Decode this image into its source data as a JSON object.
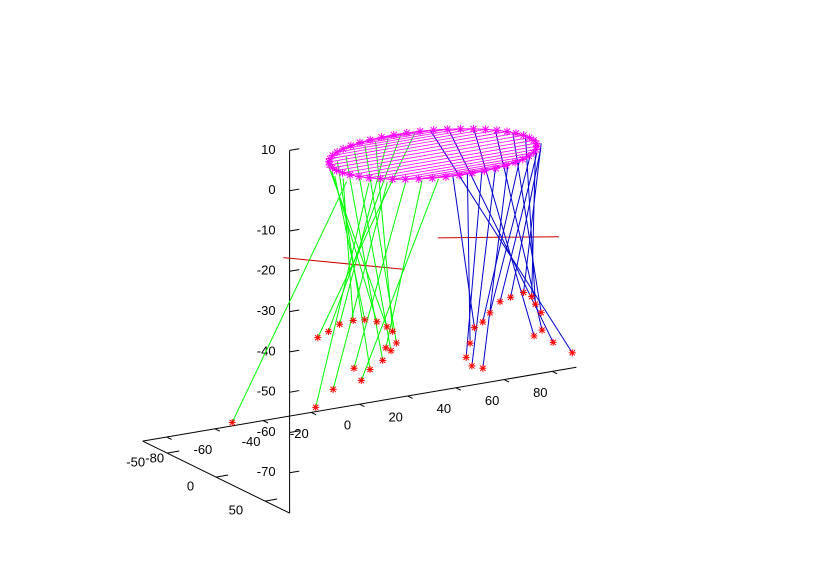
{
  "chart_data": {
    "type": "scatter",
    "projection": "3d",
    "title": "",
    "xlabel": "",
    "ylabel": "",
    "zlabel": "",
    "xlim": [
      -90,
      90
    ],
    "ylim": [
      -75,
      75
    ],
    "zlim": [
      -80,
      10
    ],
    "x_ticks": [
      "-80",
      "-60",
      "-40",
      "-20",
      "0",
      "20",
      "40",
      "60",
      "80"
    ],
    "y_ticks": [
      "-50",
      "0",
      "50"
    ],
    "z_ticks": [
      "-70",
      "-60",
      "-50",
      "-40",
      "-30",
      "-20",
      "-10",
      "0",
      "10"
    ],
    "grid": false,
    "legend": "none",
    "top_ring": {
      "z": -9,
      "radius": 40,
      "point_count": 48,
      "color": "#ff00ff",
      "marker": "*"
    },
    "support_points": {
      "color": "#ff0000",
      "marker": "*",
      "points": [
        [
          -76,
          -18,
          -70
        ],
        [
          -56,
          18,
          -64
        ],
        [
          -52,
          26,
          -59
        ],
        [
          -45,
          30,
          -54
        ],
        [
          -35,
          38,
          -49
        ],
        [
          -20,
          -24,
          -66
        ],
        [
          -18,
          -20,
          -63
        ],
        [
          -16,
          -12,
          -60
        ],
        [
          -15,
          -6,
          -57
        ],
        [
          -16,
          2,
          -54
        ],
        [
          -20,
          8,
          -50
        ],
        [
          -24,
          12,
          -48
        ],
        [
          -29,
          14,
          -46
        ],
        [
          -34,
          14,
          -45
        ],
        [
          -38,
          12,
          -45
        ],
        [
          -42,
          8,
          -46
        ],
        [
          -45,
          4,
          -48
        ],
        [
          -47,
          -2,
          -50
        ],
        [
          5,
          30,
          -49
        ],
        [
          4,
          28,
          -53
        ],
        [
          4,
          24,
          -57
        ],
        [
          8,
          20,
          -60
        ],
        [
          15,
          14,
          -62
        ],
        [
          6,
          36,
          -47
        ],
        [
          9,
          36,
          -45
        ],
        [
          14,
          34,
          -43
        ],
        [
          20,
          30,
          -43
        ],
        [
          27,
          26,
          -43
        ],
        [
          32,
          22,
          -45
        ],
        [
          36,
          16,
          -48
        ],
        [
          40,
          12,
          -51
        ],
        [
          42,
          8,
          -56
        ],
        [
          46,
          -10,
          -60
        ],
        [
          58,
          -20,
          -64
        ],
        [
          70,
          -30,
          -69
        ]
      ]
    },
    "cables": [
      {
        "color": "#00ff00",
        "from": [
          -76,
          -18,
          -70
        ],
        "to": [
          -44,
          20,
          -9
        ]
      },
      {
        "color": "#00ff00",
        "from": [
          -56,
          18,
          -64
        ],
        "to": [
          -38,
          28,
          -9
        ]
      },
      {
        "color": "#00ff00",
        "from": [
          -52,
          26,
          -59
        ],
        "to": [
          -32,
          32,
          -9
        ]
      },
      {
        "color": "#00ff00",
        "from": [
          -45,
          30,
          -54
        ],
        "to": [
          -26,
          36,
          -9
        ]
      },
      {
        "color": "#00ff00",
        "from": [
          -35,
          38,
          -49
        ],
        "to": [
          -20,
          38,
          -9
        ]
      },
      {
        "color": "#00ff00",
        "from": [
          -20,
          -24,
          -66
        ],
        "to": [
          -14,
          40,
          -9
        ]
      },
      {
        "color": "#00ff00",
        "from": [
          -18,
          -20,
          -63
        ],
        "to": [
          -34,
          -14,
          -9
        ]
      },
      {
        "color": "#00ff00",
        "from": [
          -16,
          -12,
          -60
        ],
        "to": [
          -28,
          -20,
          -9
        ]
      },
      {
        "color": "#00ff00",
        "from": [
          -15,
          -6,
          -57
        ],
        "to": [
          -22,
          -26,
          -9
        ]
      },
      {
        "color": "#00ff00",
        "from": [
          -16,
          2,
          -54
        ],
        "to": [
          -16,
          -30,
          -9
        ]
      },
      {
        "color": "#00ff00",
        "from": [
          -20,
          8,
          -50
        ],
        "to": [
          -10,
          -34,
          -9
        ]
      },
      {
        "color": "#00ff00",
        "from": [
          -24,
          12,
          -48
        ],
        "to": [
          -40,
          -8,
          -9
        ]
      },
      {
        "color": "#00ff00",
        "from": [
          -29,
          14,
          -46
        ],
        "to": [
          -42,
          0,
          -9
        ]
      },
      {
        "color": "#00ff00",
        "from": [
          -34,
          14,
          -45
        ],
        "to": [
          -44,
          8,
          -9
        ]
      },
      {
        "color": "#00ff00",
        "from": [
          -38,
          12,
          -45
        ],
        "to": [
          -43,
          14,
          -9
        ]
      },
      {
        "color": "#00ff00",
        "from": [
          -42,
          8,
          -46
        ],
        "to": [
          -4,
          -36,
          -9
        ]
      },
      {
        "color": "#00ff00",
        "from": [
          -45,
          4,
          -48
        ],
        "to": [
          2,
          -38,
          -9
        ]
      },
      {
        "color": "#00ff00",
        "from": [
          -47,
          -2,
          -50
        ],
        "to": [
          8,
          -38,
          -9
        ]
      },
      {
        "color": "#0000cc",
        "from": [
          5,
          30,
          -49
        ],
        "to": [
          -8,
          40,
          -9
        ]
      },
      {
        "color": "#0000cc",
        "from": [
          4,
          28,
          -53
        ],
        "to": [
          -2,
          40,
          -9
        ]
      },
      {
        "color": "#0000cc",
        "from": [
          4,
          24,
          -57
        ],
        "to": [
          4,
          40,
          -9
        ]
      },
      {
        "color": "#0000cc",
        "from": [
          8,
          20,
          -60
        ],
        "to": [
          10,
          39,
          -9
        ]
      },
      {
        "color": "#0000cc",
        "from": [
          15,
          14,
          -62
        ],
        "to": [
          16,
          37,
          -9
        ]
      },
      {
        "color": "#0000cc",
        "from": [
          6,
          36,
          -47
        ],
        "to": [
          22,
          34,
          -9
        ]
      },
      {
        "color": "#0000cc",
        "from": [
          9,
          36,
          -45
        ],
        "to": [
          28,
          30,
          -9
        ]
      },
      {
        "color": "#0000cc",
        "from": [
          14,
          34,
          -43
        ],
        "to": [
          33,
          25,
          -9
        ]
      },
      {
        "color": "#0000cc",
        "from": [
          20,
          30,
          -43
        ],
        "to": [
          37,
          19,
          -9
        ]
      },
      {
        "color": "#0000cc",
        "from": [
          27,
          26,
          -43
        ],
        "to": [
          40,
          12,
          -9
        ]
      },
      {
        "color": "#0000cc",
        "from": [
          32,
          22,
          -45
        ],
        "to": [
          41,
          4,
          -9
        ]
      },
      {
        "color": "#0000cc",
        "from": [
          36,
          16,
          -48
        ],
        "to": [
          40,
          -4,
          -9
        ]
      },
      {
        "color": "#0000cc",
        "from": [
          40,
          12,
          -51
        ],
        "to": [
          38,
          -12,
          -9
        ]
      },
      {
        "color": "#0000cc",
        "from": [
          42,
          8,
          -56
        ],
        "to": [
          34,
          -20,
          -9
        ]
      },
      {
        "color": "#0000cc",
        "from": [
          46,
          -10,
          -60
        ],
        "to": [
          28,
          -27,
          -9
        ]
      },
      {
        "color": "#0000cc",
        "from": [
          58,
          -20,
          -64
        ],
        "to": [
          20,
          -33,
          -9
        ]
      },
      {
        "color": "#0000cc",
        "from": [
          70,
          -30,
          -69
        ],
        "to": [
          14,
          -37,
          -9
        ]
      }
    ],
    "rails": [
      {
        "color": "#cc0000",
        "from": [
          -58,
          -10,
          -30
        ],
        "to": [
          -28,
          40,
          -30
        ]
      },
      {
        "color": "#cc0000",
        "from": [
          2,
          0,
          -30
        ],
        "to": [
          40,
          30,
          -30
        ]
      }
    ],
    "axis_color": "#000000",
    "background": "#ffffff"
  }
}
